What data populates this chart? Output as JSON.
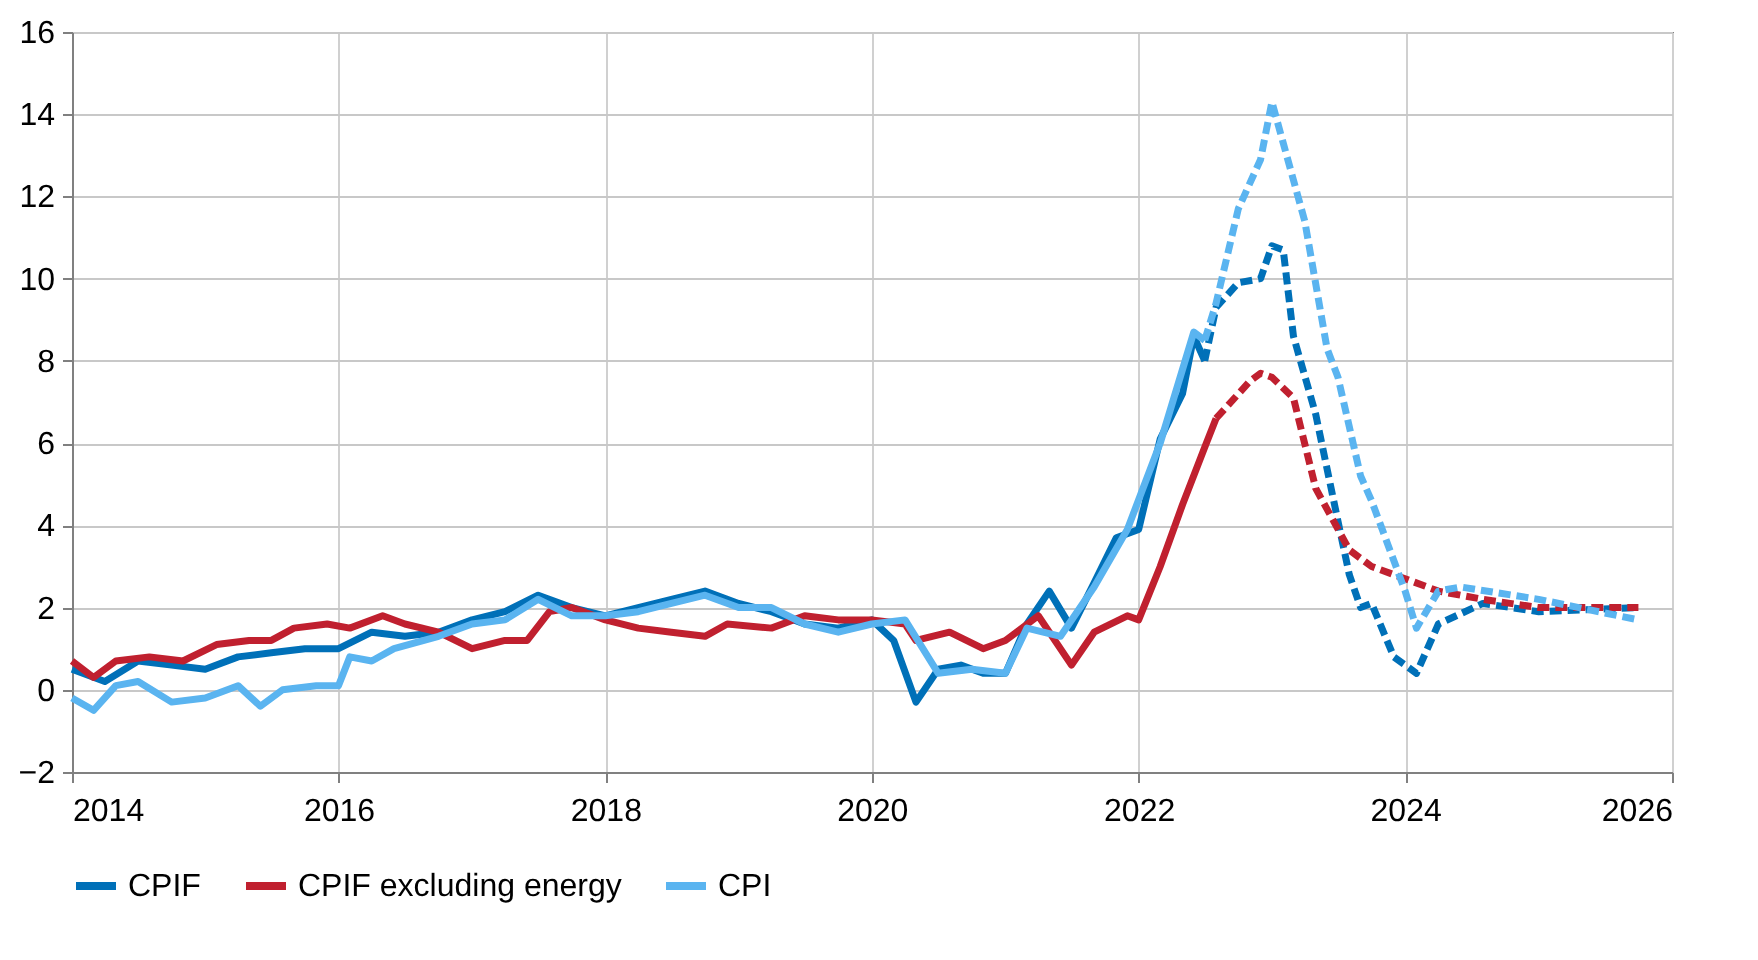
{
  "chart_data": {
    "type": "line",
    "xlim": [
      "2014-01",
      "2026-01"
    ],
    "xticks": [
      "2014",
      "2016",
      "2018",
      "2020",
      "2022",
      "2024",
      "2026"
    ],
    "ylim": [
      -2,
      16
    ],
    "yticks": [
      -2,
      0,
      2,
      4,
      6,
      8,
      10,
      12,
      14,
      16
    ],
    "grid": true,
    "legend": "bottom",
    "marker": "none",
    "series": [
      {
        "name": "CPIF",
        "color": "#0070b8",
        "line_style": "solid",
        "x": [
          "2014-01",
          "2014-04",
          "2014-07",
          "2014-10",
          "2015-01",
          "2015-04",
          "2015-07",
          "2015-10",
          "2016-01",
          "2016-04",
          "2016-07",
          "2016-10",
          "2017-01",
          "2017-04",
          "2017-07",
          "2017-10",
          "2018-01",
          "2018-04",
          "2018-07",
          "2018-10",
          "2019-01",
          "2019-04",
          "2019-07",
          "2019-10",
          "2020-01",
          "2020-03",
          "2020-05",
          "2020-07",
          "2020-09",
          "2020-11",
          "2021-01",
          "2021-03",
          "2021-05",
          "2021-07",
          "2021-09",
          "2021-11",
          "2022-01",
          "2022-03",
          "2022-05",
          "2022-06",
          "2022-07"
        ],
        "values": [
          0.5,
          0.2,
          0.7,
          0.6,
          0.5,
          0.8,
          0.9,
          1.0,
          1.0,
          1.4,
          1.3,
          1.4,
          1.7,
          1.9,
          2.3,
          2.0,
          1.8,
          2.0,
          2.2,
          2.4,
          2.1,
          1.9,
          1.6,
          1.5,
          1.7,
          1.2,
          -0.3,
          0.5,
          0.6,
          0.4,
          0.4,
          1.6,
          2.4,
          1.5,
          2.6,
          3.7,
          3.9,
          6.1,
          7.2,
          8.6,
          8.0
        ]
      },
      {
        "name": "CPIF excluding energy",
        "color": "#c0202f",
        "line_style": "solid",
        "x": [
          "2014-01",
          "2014-03",
          "2014-05",
          "2014-08",
          "2014-11",
          "2015-02",
          "2015-05",
          "2015-07",
          "2015-09",
          "2015-12",
          "2016-02",
          "2016-05",
          "2016-07",
          "2016-10",
          "2017-01",
          "2017-04",
          "2017-06",
          "2017-08",
          "2017-10",
          "2018-01",
          "2018-04",
          "2018-07",
          "2018-10",
          "2018-12",
          "2019-04",
          "2019-07",
          "2019-10",
          "2020-01",
          "2020-04",
          "2020-05",
          "2020-08",
          "2020-11",
          "2021-01",
          "2021-04",
          "2021-07",
          "2021-09",
          "2021-12",
          "2022-01",
          "2022-03",
          "2022-05",
          "2022-07",
          "2022-08"
        ],
        "values": [
          0.7,
          0.3,
          0.7,
          0.8,
          0.7,
          1.1,
          1.2,
          1.2,
          1.5,
          1.6,
          1.5,
          1.8,
          1.6,
          1.4,
          1.0,
          1.2,
          1.2,
          1.9,
          2.0,
          1.7,
          1.5,
          1.4,
          1.3,
          1.6,
          1.5,
          1.8,
          1.7,
          1.7,
          1.6,
          1.2,
          1.4,
          1.0,
          1.2,
          1.8,
          0.6,
          1.4,
          1.8,
          1.7,
          3.0,
          4.5,
          5.9,
          6.6
        ]
      },
      {
        "name": "CPI",
        "color": "#5ab4f0",
        "line_style": "solid",
        "x": [
          "2014-01",
          "2014-03",
          "2014-05",
          "2014-07",
          "2014-10",
          "2015-01",
          "2015-04",
          "2015-06",
          "2015-08",
          "2015-11",
          "2016-01",
          "2016-02",
          "2016-04",
          "2016-06",
          "2016-10",
          "2017-01",
          "2017-04",
          "2017-07",
          "2017-10",
          "2018-01",
          "2018-04",
          "2018-07",
          "2018-10",
          "2019-01",
          "2019-04",
          "2019-07",
          "2019-10",
          "2020-01",
          "2020-04",
          "2020-07",
          "2020-10",
          "2021-01",
          "2021-03",
          "2021-06",
          "2021-09",
          "2021-12",
          "2022-03",
          "2022-06",
          "2022-07"
        ],
        "values": [
          -0.2,
          -0.5,
          0.1,
          0.2,
          -0.3,
          -0.2,
          0.1,
          -0.4,
          0.0,
          0.1,
          0.1,
          0.8,
          0.7,
          1.0,
          1.3,
          1.6,
          1.7,
          2.2,
          1.8,
          1.8,
          1.9,
          2.1,
          2.3,
          2.0,
          2.0,
          1.6,
          1.4,
          1.6,
          1.7,
          0.4,
          0.5,
          0.4,
          1.5,
          1.3,
          2.5,
          3.9,
          6.0,
          8.7,
          8.5
        ]
      },
      {
        "color": "#0070b8",
        "line_style": "dashed",
        "x": [
          "2022-07",
          "2022-08",
          "2022-10",
          "2022-12",
          "2023-01",
          "2023-02",
          "2023-03",
          "2023-05",
          "2023-07",
          "2023-08",
          "2023-09",
          "2023-10",
          "2023-12",
          "2024-02",
          "2024-04",
          "2024-08",
          "2025-01",
          "2025-10"
        ],
        "values": [
          8.0,
          9.3,
          9.9,
          10.0,
          10.8,
          10.7,
          8.6,
          6.7,
          4.1,
          2.8,
          2.0,
          2.1,
          0.8,
          0.4,
          1.6,
          2.1,
          1.9,
          2.0
        ]
      },
      {
        "color": "#c0202f",
        "line_style": "dashed",
        "x": [
          "2022-08",
          "2022-11",
          "2022-12",
          "2023-01",
          "2023-03",
          "2023-05",
          "2023-08",
          "2023-10",
          "2024-01",
          "2024-04",
          "2024-08",
          "2025-01",
          "2025-10"
        ],
        "values": [
          6.6,
          7.5,
          7.7,
          7.6,
          7.1,
          4.9,
          3.4,
          3.0,
          2.7,
          2.4,
          2.2,
          2.0,
          2.0
        ]
      },
      {
        "color": "#5ab4f0",
        "line_style": "dashed",
        "x": [
          "2022-07",
          "2022-08",
          "2022-10",
          "2022-12",
          "2023-01",
          "2023-02",
          "2023-04",
          "2023-06",
          "2023-07",
          "2023-09",
          "2023-10",
          "2024-01",
          "2024-02",
          "2024-04",
          "2024-06",
          "2025-01",
          "2025-10"
        ],
        "values": [
          8.5,
          9.4,
          11.7,
          12.9,
          14.3,
          13.3,
          11.4,
          8.3,
          7.6,
          5.2,
          4.6,
          2.4,
          1.5,
          2.4,
          2.5,
          2.2,
          1.7
        ]
      }
    ]
  }
}
